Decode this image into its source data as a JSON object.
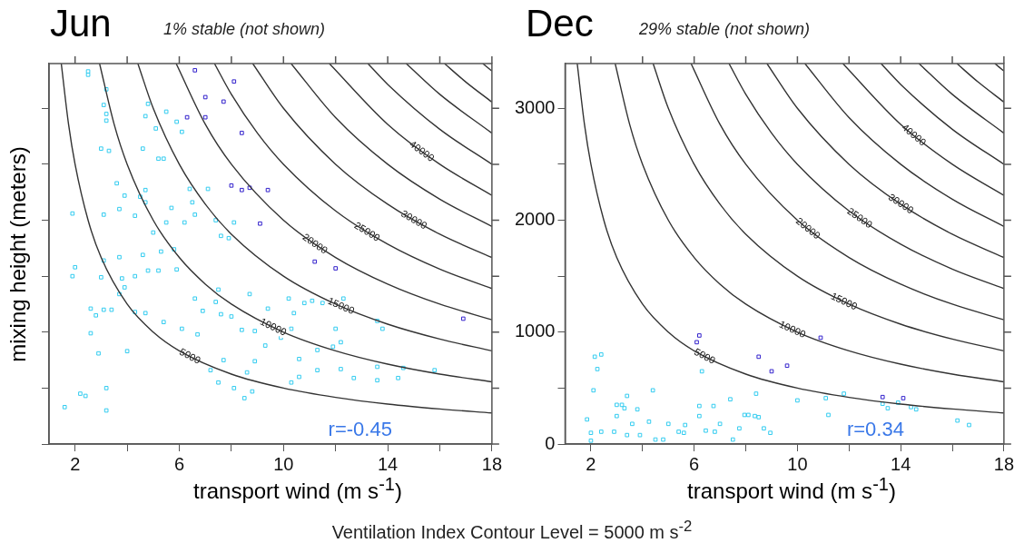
{
  "chart_data": [
    {
      "type": "scatter",
      "title": "Jun",
      "subtitle": "1% stable (not shown)",
      "xlabel": "transport wind (m s$^{-1}$)",
      "ylabel": "mixing height (meters)",
      "xlim": [
        1,
        18
      ],
      "ylim": [
        0,
        3400
      ],
      "xticks": [
        2,
        {
          "value": 4,
          "label": null
        },
        6,
        {
          "value": 8,
          "label": null
        },
        10,
        {
          "value": 12,
          "label": null
        },
        14,
        {
          "value": 16,
          "label": null
        },
        18
      ],
      "yticks": [
        0,
        {
          "value": 500,
          "label": null
        },
        1000,
        {
          "value": 1500,
          "label": null
        },
        2000,
        {
          "value": 2500,
          "label": null
        },
        3000
      ],
      "tick_labels": "x",
      "grid": false,
      "legend": false,
      "series": [
        {
          "type": "line",
          "color": "#333333",
          "marker": "none",
          "x": [
            1.47,
            1.75,
            2,
            2.5,
            3,
            4,
            5,
            6,
            8,
            10,
            12,
            14,
            16,
            18
          ],
          "values": [
            3400,
            2857,
            2500,
            2000,
            1667,
            1250,
            1000,
            833,
            625,
            500,
            417,
            357,
            313,
            278
          ]
        },
        {
          "type": "line",
          "color": "#333333",
          "marker": "none",
          "x": [
            2.94,
            3.5,
            4,
            5,
            6,
            7,
            8,
            10,
            12,
            14,
            16,
            18
          ],
          "values": [
            3400,
            2857,
            2500,
            2000,
            1667,
            1429,
            1250,
            1000,
            833,
            714,
            625,
            556
          ]
        },
        {
          "type": "line",
          "color": "#333333",
          "marker": "none",
          "x": [
            4.41,
            5,
            6,
            7,
            8,
            10,
            12,
            14,
            16,
            18
          ],
          "values": [
            3400,
            3000,
            2500,
            2143,
            1875,
            1500,
            1250,
            1071,
            938,
            833
          ]
        },
        {
          "type": "line",
          "color": "#333333",
          "marker": "none",
          "x": [
            5.88,
            7,
            8,
            10,
            12,
            14,
            16,
            18
          ],
          "values": [
            3400,
            2857,
            2500,
            2000,
            1667,
            1429,
            1250,
            1111
          ]
        },
        {
          "type": "line",
          "color": "#333333",
          "marker": "none",
          "x": [
            7.35,
            8,
            9,
            10,
            12,
            14,
            16,
            18
          ],
          "values": [
            3400,
            3125,
            2778,
            2500,
            2083,
            1786,
            1563,
            1389
          ]
        },
        {
          "type": "line",
          "color": "#333333",
          "marker": "none",
          "x": [
            8.82,
            10,
            12,
            14,
            16,
            18
          ],
          "values": [
            3400,
            3000,
            2500,
            2143,
            1875,
            1667
          ]
        },
        {
          "type": "line",
          "color": "#333333",
          "marker": "none",
          "x": [
            10.29,
            12,
            14,
            16,
            18
          ],
          "values": [
            3400,
            2917,
            2500,
            2188,
            1944
          ]
        },
        {
          "type": "line",
          "color": "#333333",
          "marker": "none",
          "x": [
            11.76,
            14,
            16,
            18
          ],
          "values": [
            3400,
            2857,
            2500,
            2222
          ]
        },
        {
          "type": "line",
          "color": "#333333",
          "marker": "none",
          "x": [
            13.24,
            14,
            16,
            18
          ],
          "values": [
            3400,
            3214,
            2813,
            2500
          ]
        },
        {
          "type": "line",
          "color": "#333333",
          "marker": "none",
          "x": [
            14.71,
            16,
            18
          ],
          "values": [
            3400,
            3125,
            2778
          ]
        },
        {
          "type": "line",
          "color": "#333333",
          "marker": "none",
          "x": [
            16.18,
            17,
            18
          ],
          "values": [
            3400,
            3235,
            3056
          ]
        },
        {
          "type": "line",
          "color": "#333333",
          "marker": "none",
          "x": [
            17.65,
            18
          ],
          "values": [
            3400,
            3333
          ]
        },
        {
          "type": "scatter",
          "color": "#33ccf0",
          "marker": "square",
          "x": [
            2.5,
            2.5,
            3.2,
            3.1,
            3.2,
            3.2,
            4.8,
            4.7,
            5.5,
            5.1,
            4.6,
            3.0,
            3.3,
            5.9,
            5.2,
            6.1,
            5.4,
            4.7,
            3.6,
            3.9,
            4.5,
            4.7,
            1.9,
            3.1,
            3.7,
            4.3,
            5.7,
            6.4,
            6.5,
            6.6,
            7.1,
            6.2,
            5.5,
            5.0,
            7.4,
            8.1,
            7.9,
            7.6,
            5.3,
            4.6,
            3.7,
            3.9,
            5.2,
            5.8,
            5.9,
            4.3,
            4.8,
            3.8,
            3.7,
            3.0,
            3.1,
            2.6,
            2.8,
            3.1,
            3.4,
            4.3,
            4.7,
            6.7,
            5.4,
            6.9,
            7.6,
            7.4,
            7.5,
            6.6,
            8.0,
            8.4,
            8.7,
            9.4,
            8.9,
            10.3,
            10.2,
            10.4,
            10.8,
            11.1,
            11.5,
            12.0,
            12.2,
            11.9,
            11.3,
            10.6,
            9.9,
            9.3,
            8.9,
            8.6,
            8.1,
            7.7,
            7.2,
            7.5,
            8.5,
            8.8,
            10.3,
            10.6,
            11.3,
            12.2,
            12.7,
            13.6,
            13.6,
            14.4,
            14.6,
            15.8,
            13.8,
            12.3,
            13.6,
            2.6,
            4.0,
            2.9,
            2.4,
            2.2,
            3.2,
            3.2,
            1.6,
            1.9,
            2.0,
            6.1
          ],
          "values": [
            3300,
            3330,
            3170,
            3030,
            2950,
            2890,
            3040,
            2930,
            2970,
            2820,
            2640,
            2640,
            2620,
            2880,
            2550,
            2790,
            2550,
            2270,
            2330,
            2220,
            2210,
            2160,
            2060,
            2050,
            2100,
            2040,
            2110,
            2280,
            2160,
            2050,
            2280,
            1980,
            1980,
            1890,
            2000,
            1980,
            1840,
            1860,
            1720,
            1690,
            1670,
            1400,
            1550,
            1740,
            1560,
            1500,
            1550,
            1480,
            1340,
            1490,
            1640,
            1210,
            1150,
            1200,
            1200,
            1180,
            1170,
            980,
            1090,
            1190,
            1160,
            1270,
            1380,
            1300,
            1140,
            1020,
            1340,
            1210,
            1010,
            1030,
            1300,
            1170,
            1260,
            1280,
            1260,
            1030,
            910,
            870,
            840,
            760,
            950,
            880,
            740,
            640,
            500,
            750,
            660,
            550,
            410,
            470,
            550,
            600,
            660,
            670,
            590,
            690,
            570,
            590,
            680,
            660,
            1030,
            1300,
            1100,
            990,
            830,
            810,
            430,
            450,
            500,
            300,
            330,
            1500,
            1580,
            1030
          ]
        },
        {
          "type": "scatter",
          "color": "#3322cc",
          "marker": "square",
          "x": [
            6.6,
            8.1,
            7.0,
            7.7,
            6.3,
            7.0,
            8.4,
            8.0,
            8.4,
            8.7,
            9.4,
            9.1,
            11.2,
            12.0,
            16.9
          ],
          "values": [
            3340,
            3240,
            3100,
            3060,
            2920,
            2920,
            2780,
            2310,
            2270,
            2290,
            2270,
            1970,
            1630,
            1570,
            1120
          ]
        }
      ],
      "annotations": [
        {
          "text": "5000",
          "x": 6.4,
          "y": 781
        },
        {
          "text": "10000",
          "x": 9.6,
          "y": 1042
        },
        {
          "text": "15000",
          "x": 12.2,
          "y": 1230
        },
        {
          "text": "20000",
          "x": 11.2,
          "y": 1786
        },
        {
          "text": "25000",
          "x": 13.2,
          "y": 1894
        },
        {
          "text": "30000",
          "x": 15,
          "y": 2000
        },
        {
          "text": "40000",
          "x": 15.3,
          "y": 2614
        },
        "r=-0.45"
      ]
    },
    {
      "type": "scatter",
      "title": "Dec",
      "subtitle": "29% stable (not shown)",
      "xlabel": "transport wind (m s$^{-1}$)",
      "xlim": [
        1,
        18
      ],
      "ylim": [
        0,
        3400
      ],
      "xticks": [
        2,
        {
          "value": 4,
          "label": null
        },
        6,
        {
          "value": 8,
          "label": null
        },
        10,
        {
          "value": 12,
          "label": null
        },
        14,
        {
          "value": 16,
          "label": null
        },
        18
      ],
      "yticks": [
        0,
        {
          "value": 500,
          "label": null
        },
        1000,
        {
          "value": 1500,
          "label": null
        },
        2000,
        {
          "value": 2500,
          "label": null
        },
        3000
      ],
      "grid": false,
      "legend": false,
      "series": [
        {
          "type": "line",
          "color": "#333333",
          "marker": "none",
          "x": [
            1.47,
            1.75,
            2,
            2.5,
            3,
            4,
            5,
            6,
            8,
            10,
            12,
            14,
            16,
            18
          ],
          "values": [
            3400,
            2857,
            2500,
            2000,
            1667,
            1250,
            1000,
            833,
            625,
            500,
            417,
            357,
            313,
            278
          ]
        },
        {
          "type": "line",
          "color": "#333333",
          "marker": "none",
          "x": [
            2.94,
            3.5,
            4,
            5,
            6,
            7,
            8,
            10,
            12,
            14,
            16,
            18
          ],
          "values": [
            3400,
            2857,
            2500,
            2000,
            1667,
            1429,
            1250,
            1000,
            833,
            714,
            625,
            556
          ]
        },
        {
          "type": "line",
          "color": "#333333",
          "marker": "none",
          "x": [
            4.41,
            5,
            6,
            7,
            8,
            10,
            12,
            14,
            16,
            18
          ],
          "values": [
            3400,
            3000,
            2500,
            2143,
            1875,
            1500,
            1250,
            1071,
            938,
            833
          ]
        },
        {
          "type": "line",
          "color": "#333333",
          "marker": "none",
          "x": [
            5.88,
            7,
            8,
            10,
            12,
            14,
            16,
            18
          ],
          "values": [
            3400,
            2857,
            2500,
            2000,
            1667,
            1429,
            1250,
            1111
          ]
        },
        {
          "type": "line",
          "color": "#333333",
          "marker": "none",
          "x": [
            7.35,
            8,
            9,
            10,
            12,
            14,
            16,
            18
          ],
          "values": [
            3400,
            3125,
            2778,
            2500,
            2083,
            1786,
            1563,
            1389
          ]
        },
        {
          "type": "line",
          "color": "#333333",
          "marker": "none",
          "x": [
            8.82,
            10,
            12,
            14,
            16,
            18
          ],
          "values": [
            3400,
            3000,
            2500,
            2143,
            1875,
            1667
          ]
        },
        {
          "type": "line",
          "color": "#333333",
          "marker": "none",
          "x": [
            10.29,
            12,
            14,
            16,
            18
          ],
          "values": [
            3400,
            2917,
            2500,
            2188,
            1944
          ]
        },
        {
          "type": "line",
          "color": "#333333",
          "marker": "none",
          "x": [
            11.76,
            14,
            16,
            18
          ],
          "values": [
            3400,
            2857,
            2500,
            2222
          ]
        },
        {
          "type": "line",
          "color": "#333333",
          "marker": "none",
          "x": [
            13.24,
            14,
            16,
            18
          ],
          "values": [
            3400,
            3214,
            2813,
            2500
          ]
        },
        {
          "type": "line",
          "color": "#333333",
          "marker": "none",
          "x": [
            14.71,
            16,
            18
          ],
          "values": [
            3400,
            3125,
            2778
          ]
        },
        {
          "type": "line",
          "color": "#333333",
          "marker": "none",
          "x": [
            16.18,
            17,
            18
          ],
          "values": [
            3400,
            3235,
            3056
          ]
        },
        {
          "type": "line",
          "color": "#333333",
          "marker": "none",
          "x": [
            17.65,
            18
          ],
          "values": [
            3400,
            3333
          ]
        },
        {
          "type": "scatter",
          "color": "#33ccf0",
          "marker": "square",
          "x": [
            2.15,
            2.4,
            2.25,
            2.1,
            4.4,
            6.3,
            3.4,
            3.0,
            3.2,
            3.3,
            3.8,
            1.85,
            3.0,
            3.6,
            4.25,
            5.0,
            5.4,
            4.5,
            4.8,
            5.6,
            2.0,
            2.4,
            2.9,
            3.4,
            3.9,
            2.0,
            5.65,
            6.2,
            6.75,
            7.4,
            6.2,
            7.0,
            6.45,
            6.8,
            7.5,
            7.75,
            7.95,
            8.1,
            8.35,
            8.5,
            8.4,
            8.7,
            8.95,
            10.0,
            11.1,
            11.2,
            11.8,
            13.3,
            13.5,
            13.9,
            14.4,
            14.6,
            16.2,
            16.65
          ],
          "values": [
            780,
            800,
            670,
            480,
            480,
            650,
            430,
            350,
            350,
            320,
            310,
            220,
            250,
            180,
            200,
            180,
            110,
            40,
            40,
            100,
            100,
            110,
            110,
            80,
            80,
            30,
            170,
            340,
            340,
            400,
            250,
            180,
            120,
            110,
            40,
            140,
            260,
            260,
            250,
            240,
            450,
            140,
            100,
            390,
            410,
            260,
            450,
            360,
            320,
            370,
            330,
            310,
            210,
            170
          ]
        },
        {
          "type": "scatter",
          "color": "#3322cc",
          "marker": "square",
          "x": [
            6.2,
            6.1,
            8.5,
            9.0,
            9.6,
            10.9,
            13.3,
            14.1
          ],
          "values": [
            970,
            910,
            780,
            650,
            700,
            950,
            420,
            410
          ]
        }
      ],
      "annotations": [
        {
          "text": "5000",
          "x": 6.4,
          "y": 781
        },
        {
          "text": "10000",
          "x": 9.8,
          "y": 1020
        },
        {
          "text": "15000",
          "x": 11.8,
          "y": 1271
        },
        {
          "text": "20000",
          "x": 10.4,
          "y": 1923
        },
        {
          "text": "25000",
          "x": 12.4,
          "y": 2016
        },
        {
          "text": "30000",
          "x": 14,
          "y": 2143
        },
        {
          "text": "40000",
          "x": 14.5,
          "y": 2759
        },
        "r=0.34"
      ]
    },
    {
      "type": "other",
      "title": "Ventilation Index Contour Level = 5000 m s$^{-2}$"
    }
  ]
}
